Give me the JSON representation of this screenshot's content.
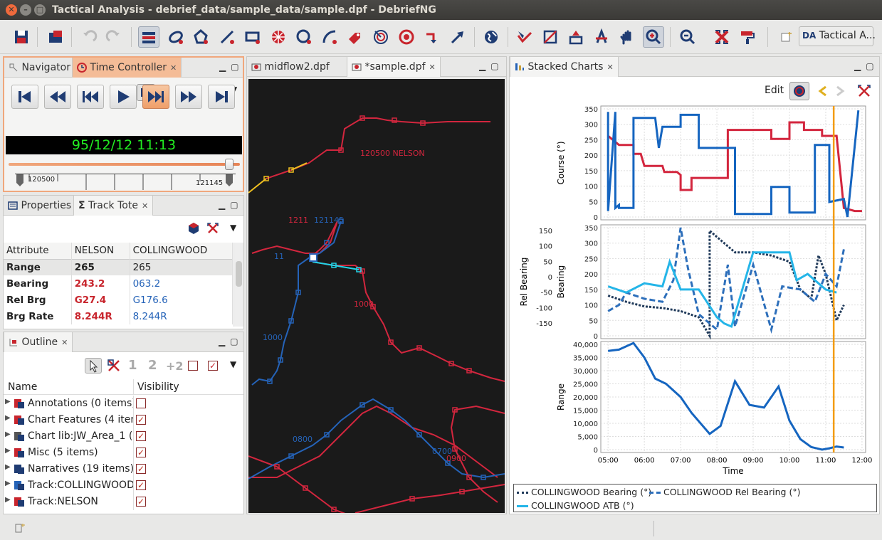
{
  "window": {
    "title": "Tactical Analysis - debrief_data/sample_data/sample.dpf - DebriefNG"
  },
  "toolbar": {
    "perspective_label": "Tactical A...",
    "perspective_icon": "DA"
  },
  "timeController": {
    "tabs": [
      {
        "label": "Navigator"
      },
      {
        "label": "Time Controller"
      }
    ],
    "time": "95/12/12 11:13",
    "slider_start": "120500",
    "slider_end": "121145",
    "slider_position": 0.97
  },
  "trackTote": {
    "tabs": [
      {
        "label": "Properties"
      },
      {
        "label": "Track Tote"
      }
    ],
    "headers": [
      "Attribute",
      "NELSON",
      "COLLINGWOOD"
    ],
    "rows": [
      {
        "attr": "Range",
        "a": "265",
        "b": "265"
      },
      {
        "attr": "Bearing",
        "a": "243.2",
        "b": "063.2"
      },
      {
        "attr": "Rel Brg",
        "a": "G27.4",
        "b": "G176.6"
      },
      {
        "attr": "Brg Rate",
        "a": "8.244R",
        "b": "8.244R"
      }
    ]
  },
  "outline": {
    "tab": "Outline",
    "headers": [
      "Name",
      "Visibility"
    ],
    "items": [
      {
        "label": "Annotations (0 items)",
        "checked": false
      },
      {
        "label": "Chart Features (4 items)",
        "checked": true
      },
      {
        "label": "Chart lib:JW_Area_1 (",
        "checked": true
      },
      {
        "label": "Misc (5 items)",
        "checked": true
      },
      {
        "label": "Narratives (19 items)",
        "checked": true
      },
      {
        "label": "Track:COLLINGWOOD",
        "checked": true
      },
      {
        "label": "Track:NELSON",
        "checked": true
      }
    ]
  },
  "editor": {
    "tabs": [
      {
        "label": "midflow2.dpf"
      },
      {
        "label": "*sample.dpf"
      }
    ],
    "labels": [
      {
        "text": "120500 NELSON",
        "color": "#d3263e"
      },
      {
        "text": "121145",
        "color": "#2563b8"
      },
      {
        "text": "1211",
        "color": "#d3263e"
      },
      {
        "text": "11",
        "color": "#2563b8"
      },
      {
        "text": "1000",
        "color": "#d3263e"
      },
      {
        "text": "1000",
        "color": "#2563b8"
      },
      {
        "text": "0800",
        "color": "#2563b8"
      },
      {
        "text": "0700",
        "color": "#2563b8"
      },
      {
        "text": "0900",
        "color": "#d3263e"
      }
    ]
  },
  "stacked": {
    "tab": "Stacked Charts",
    "edit": "Edit",
    "legend": [
      "COLLINGWOOD Bearing (°)",
      "COLLINGWOOD Rel Bearing (°)",
      "COLLINGWOOD ATB (°)"
    ]
  },
  "chart_data": [
    {
      "type": "line",
      "ylabel": "Course (°)",
      "ylim": [
        0,
        360
      ],
      "yticks": [
        "350",
        "300",
        "250",
        "200",
        "150",
        "100",
        "50",
        "0"
      ],
      "series": [
        {
          "color": "#d3263e",
          "x": [
            5.0,
            5.1,
            5.3,
            5.7,
            5.7,
            5.9,
            6.0,
            6.5,
            6.55,
            6.9,
            7.0,
            7.0,
            7.3,
            7.3,
            7.6,
            7.6,
            8.3,
            8.3,
            9.0,
            9.5,
            9.5,
            10.0,
            10.0,
            10.4,
            10.4,
            10.9,
            10.9,
            11.3,
            11.5,
            11.8,
            12.0
          ],
          "y": [
            270,
            260,
            240,
            240,
            210,
            210,
            170,
            170,
            150,
            150,
            140,
            90,
            90,
            130,
            130,
            130,
            130,
            290,
            290,
            290,
            260,
            260,
            315,
            315,
            290,
            290,
            270,
            270,
            30,
            20,
            20
          ]
        },
        {
          "color": "#1565c0",
          "x": [
            5.0,
            5.0,
            5.2,
            5.2,
            5.3,
            5.3,
            5.7,
            5.7,
            6.3,
            6.4,
            6.5,
            7.0,
            7.0,
            7.5,
            7.5,
            8.5,
            8.5,
            9.5,
            9.5,
            10.0,
            10.0,
            10.7,
            10.7,
            11.1,
            11.1,
            11.5,
            11.6,
            11.9
          ],
          "y": [
            350,
            20,
            350,
            30,
            40,
            30,
            30,
            330,
            330,
            230,
            300,
            300,
            340,
            340,
            230,
            230,
            10,
            10,
            100,
            100,
            15,
            15,
            240,
            240,
            50,
            60,
            0,
            355
          ]
        }
      ]
    },
    {
      "type": "line",
      "ylabel": "Bearing",
      "y2label": "Rel Bearing",
      "ylim": [
        0,
        350
      ],
      "yticks": [
        "350",
        "300",
        "250",
        "200",
        "150",
        "100",
        "50",
        "0"
      ],
      "y2ticks": [
        "150",
        "100",
        "50",
        "0",
        "-50",
        "-100",
        "-150"
      ],
      "series": [
        {
          "name": "COLLINGWOOD Bearing (°)",
          "color": "#203a5a",
          "x": [
            5.0,
            5.5,
            6.0,
            6.5,
            7.0,
            7.5,
            7.8,
            7.8,
            8.5,
            9.0,
            9.5,
            10.0,
            10.3,
            10.6,
            10.8,
            11.0,
            11.3,
            11.5
          ],
          "y": [
            130,
            110,
            95,
            90,
            80,
            60,
            0,
            340,
            270,
            270,
            260,
            240,
            150,
            120,
            260,
            200,
            50,
            100
          ]
        },
        {
          "name": "COLLINGWOOD Rel Bearing (°)",
          "color": "#2d6fbb",
          "x": [
            5.0,
            5.3,
            5.5,
            6.0,
            6.5,
            6.8,
            7.0,
            7.2,
            7.4,
            7.5,
            8.0,
            8.3,
            8.5,
            9.0,
            9.5,
            9.8,
            10.3,
            10.7,
            11.0,
            11.3,
            11.5
          ],
          "y": [
            80,
            100,
            140,
            120,
            110,
            180,
            350,
            220,
            120,
            70,
            20,
            230,
            30,
            230,
            20,
            160,
            150,
            110,
            200,
            160,
            280
          ]
        },
        {
          "name": "COLLINGWOOD ATB (°)",
          "color": "#24b5e8",
          "x": [
            5.0,
            5.5,
            6.0,
            6.5,
            6.7,
            7.0,
            7.5,
            8.0,
            8.2,
            8.4,
            9.0,
            9.5,
            10.0,
            10.2,
            10.5,
            10.7,
            11.0,
            11.3
          ],
          "y": [
            160,
            140,
            170,
            160,
            240,
            150,
            150,
            60,
            40,
            30,
            270,
            270,
            270,
            180,
            200,
            180,
            150,
            140
          ]
        }
      ]
    },
    {
      "type": "line",
      "xlabel": "Time",
      "ylabel": "Range",
      "ylim": [
        0,
        40000
      ],
      "yticks": [
        "40,000",
        "35,000",
        "30,000",
        "25,000",
        "20,000",
        "15,000",
        "10,000",
        "5,000",
        "0"
      ],
      "xticks": [
        "05:00",
        "06:00",
        "07:00",
        "08:00",
        "09:00",
        "10:00",
        "11:00",
        "12:00"
      ],
      "series": [
        {
          "color": "#1565c0",
          "x": [
            5.0,
            5.3,
            5.7,
            6.0,
            6.3,
            6.6,
            7.0,
            7.3,
            7.8,
            8.1,
            8.5,
            8.9,
            9.3,
            9.7,
            10.0,
            10.3,
            10.6,
            10.9,
            11.1,
            11.3,
            11.5
          ],
          "y": [
            37500,
            38000,
            40500,
            35000,
            27000,
            25000,
            20000,
            14000,
            6000,
            9000,
            26000,
            17000,
            16000,
            24000,
            11000,
            4000,
            1000,
            0,
            500,
            1200,
            800
          ]
        }
      ]
    }
  ]
}
